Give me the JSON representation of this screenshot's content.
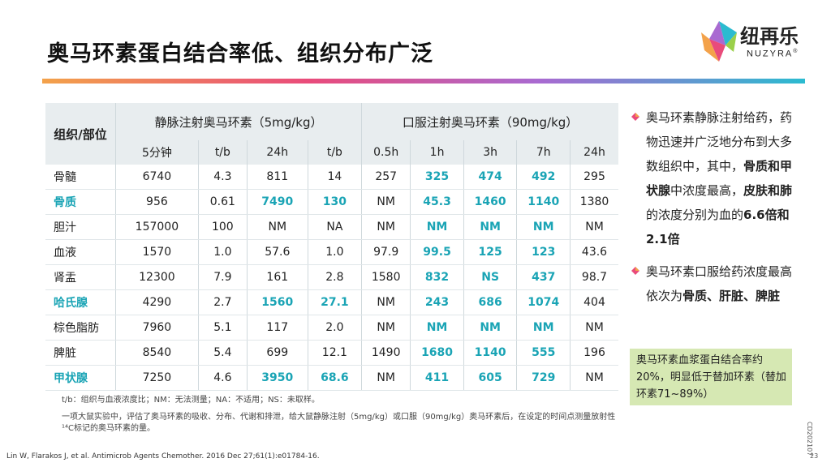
{
  "title": "奥马环素蛋白结合率低、组织分布广泛",
  "logo": {
    "text": "纽再乐",
    "sub": "NUZYRA",
    "reg": "®"
  },
  "table": {
    "corner": "组织/部位",
    "groups": [
      "静脉注射奥马环素（5mg/kg）",
      "口服注射奥马环素（90mg/kg）"
    ],
    "subheaders": [
      "5分钟",
      "t/b",
      "24h",
      "t/b",
      "0.5h",
      "1h",
      "3h",
      "7h",
      "24h"
    ],
    "rows": [
      {
        "tissue": "骨髓",
        "v": [
          "6740",
          "4.3",
          "811",
          "14",
          "257",
          "325",
          "474",
          "492",
          "295"
        ]
      },
      {
        "tissue": "骨质",
        "v": [
          "956",
          "0.61",
          "7490",
          "130",
          "NM",
          "45.3",
          "1460",
          "1140",
          "1380"
        ]
      },
      {
        "tissue": "胆汁",
        "v": [
          "157000",
          "100",
          "NM",
          "NA",
          "NM",
          "NM",
          "NM",
          "NM",
          "NM"
        ]
      },
      {
        "tissue": "血液",
        "v": [
          "1570",
          "1.0",
          "57.6",
          "1.0",
          "97.9",
          "99.5",
          "125",
          "123",
          "43.6"
        ]
      },
      {
        "tissue": "肾盂",
        "v": [
          "12300",
          "7.9",
          "161",
          "2.8",
          "1580",
          "832",
          "NS",
          "437",
          "98.7"
        ]
      },
      {
        "tissue": "哈氏腺",
        "v": [
          "4290",
          "2.7",
          "1560",
          "27.1",
          "NM",
          "243",
          "686",
          "1074",
          "404"
        ]
      },
      {
        "tissue": "棕色脂肪",
        "v": [
          "7960",
          "5.1",
          "117",
          "2.0",
          "NM",
          "NM",
          "NM",
          "NM",
          "NM"
        ]
      },
      {
        "tissue": "脾脏",
        "v": [
          "8540",
          "5.4",
          "699",
          "12.1",
          "1490",
          "1680",
          "1140",
          "555",
          "196"
        ]
      },
      {
        "tissue": "甲状腺",
        "v": [
          "7250",
          "4.6",
          "3950",
          "68.6",
          "NM",
          "411",
          "605",
          "729",
          "NM"
        ]
      }
    ]
  },
  "footnote": "t/b：组织与血液浓度比；NM：无法测量；NA：不适用；NS：未取样。",
  "description": "一项大鼠实验中，评估了奥马环素的吸收、分布、代谢和排泄，给大鼠静脉注射（5mg/kg）或口服（90mg/kg）奥马环素后，在设定的时间点测量放射性¹⁴C标记的奥马环素的量。",
  "bullets": {
    "b1": {
      "p1": "奥马环素静脉注射给药，药物迅速并广泛地分布到大多数组织中，其中，",
      "p2": "骨质和甲状腺",
      "p3": "中浓度最高，",
      "p4": "皮肤和肺",
      "p5": "的浓度分别为血的",
      "p6": "6.6倍和2.1倍"
    },
    "b2": {
      "p1": "奥马环素口服给药浓度最高依次为",
      "p2": "骨质、肝脏、脾脏"
    }
  },
  "callout": "奥马环素血浆蛋白结合率约20%，明显低于替加环素（替加环素71~89%）",
  "citation": "Lin W, Flarakos J, et al. Antimicrob Agents Chemother. 2016 Dec 27;61(1):e01784-16.",
  "page_code": "CD202107",
  "page_number": "23",
  "colors": {
    "accent": "#1aa4b5",
    "callout_bg": "#d6e8b3",
    "header_bg": "#e8edef"
  }
}
